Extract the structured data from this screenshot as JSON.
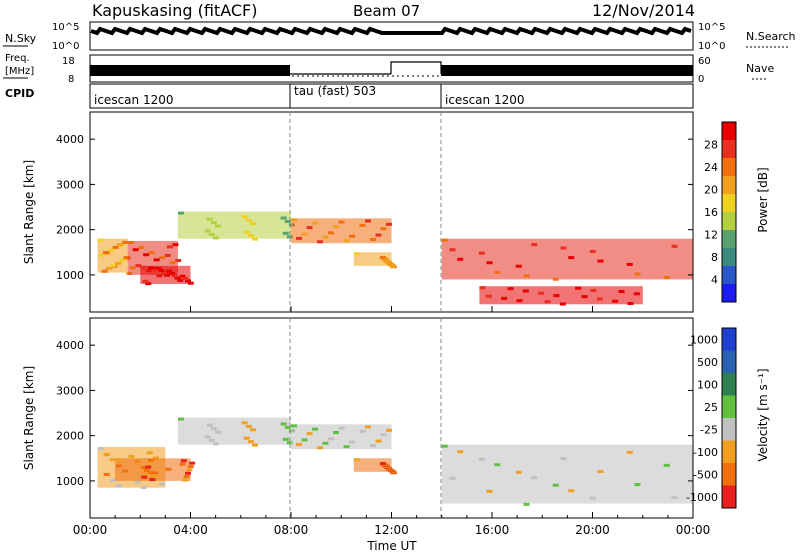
{
  "header": {
    "radar": "Kapuskasing (fitACF)",
    "beam": "Beam 07",
    "date": "12/Nov/2014"
  },
  "noise_panel": {
    "left_label": "N.Sky",
    "right_label": "N.Search",
    "left_ticks": [
      "10^5",
      "10^0"
    ],
    "right_ticks": [
      "10^5",
      "10^0"
    ]
  },
  "freq_panel": {
    "left_label_1": "Freq.",
    "left_label_2": "[MHz]",
    "right_label": "Nave",
    "left_ticks": [
      "18",
      "8"
    ],
    "right_ticks": [
      "60",
      "0"
    ]
  },
  "cpid_panel": {
    "label": "CPID",
    "segments": [
      {
        "name": "icescan 1200",
        "start": 0,
        "end": 8
      },
      {
        "name": "tau (fast) 503",
        "start": 8,
        "end": 14
      },
      {
        "name": "icescan 1200",
        "start": 14,
        "end": 24
      }
    ]
  },
  "colors": {
    "power": [
      "#1c1cf0",
      "#2a56c8",
      "#3a8a80",
      "#5aa070",
      "#b4d040",
      "#f0d020",
      "#f0a020",
      "#f07010",
      "#e83020",
      "#e80000"
    ],
    "velocity": [
      "#2040d0",
      "#2a62b0",
      "#2f8050",
      "#60c040",
      "#c0c0c0",
      "#f0a020",
      "#f07010",
      "#e82020"
    ]
  },
  "chart_data": [
    {
      "type": "heatmap",
      "name": "power",
      "ylabel": "Slant Range [km]",
      "y_ticks": [
        1000,
        2000,
        3000,
        4000
      ],
      "ylim": [
        180,
        4600
      ],
      "xlim": [
        0,
        24
      ],
      "colorbar_label": "Power [dB]",
      "colorbar_ticks": [
        "4",
        "8",
        "12",
        "16",
        "20",
        "24",
        "28"
      ],
      "regions": [
        {
          "t0": 0.3,
          "t1": 1.5,
          "r0": 1050,
          "r1": 1800,
          "level": 6
        },
        {
          "t0": 1.5,
          "t1": 3.5,
          "r0": 1000,
          "r1": 1750,
          "level": 8
        },
        {
          "t0": 2.0,
          "t1": 4.0,
          "r0": 800,
          "r1": 1200,
          "level": 9
        },
        {
          "t0": 3.5,
          "t1": 8.0,
          "r0": 1800,
          "r1": 2400,
          "level": 4
        },
        {
          "t0": 8.0,
          "t1": 12.0,
          "r0": 1700,
          "r1": 2250,
          "level": 7
        },
        {
          "t0": 10.5,
          "t1": 12.0,
          "r0": 1200,
          "r1": 1500,
          "level": 6
        },
        {
          "t0": 14.0,
          "t1": 24.0,
          "r0": 900,
          "r1": 1800,
          "level": 8
        },
        {
          "t0": 15.5,
          "t1": 22.0,
          "r0": 350,
          "r1": 750,
          "level": 9
        }
      ]
    },
    {
      "type": "heatmap",
      "name": "velocity",
      "xlabel": "Time UT",
      "ylabel": "Slant Range [km]",
      "y_ticks": [
        1000,
        2000,
        3000,
        4000
      ],
      "ylim": [
        180,
        4600
      ],
      "xlim": [
        0,
        24
      ],
      "x_ticks": [
        "00:00",
        "04:00",
        "08:00",
        "12:00",
        "16:00",
        "20:00",
        "00:00"
      ],
      "colorbar_label": "Velocity [m s⁻¹]",
      "colorbar_ticks": [
        "1000",
        "500",
        "100",
        "25",
        "-25",
        "-100",
        "-500",
        "-1000"
      ],
      "regions": [
        {
          "t0": 0.3,
          "t1": 3.0,
          "r0": 850,
          "r1": 1750,
          "level": 5
        },
        {
          "t0": 1.0,
          "t1": 4.0,
          "r0": 1000,
          "r1": 1500,
          "level": 6
        },
        {
          "t0": 3.5,
          "t1": 8.0,
          "r0": 1800,
          "r1": 2400,
          "level": 4
        },
        {
          "t0": 8.0,
          "t1": 12.0,
          "r0": 1700,
          "r1": 2250,
          "level": 4
        },
        {
          "t0": 10.5,
          "t1": 12.0,
          "r0": 1200,
          "r1": 1500,
          "level": 6
        },
        {
          "t0": 14.0,
          "t1": 24.0,
          "r0": 500,
          "r1": 1800,
          "level": 4
        }
      ]
    }
  ]
}
